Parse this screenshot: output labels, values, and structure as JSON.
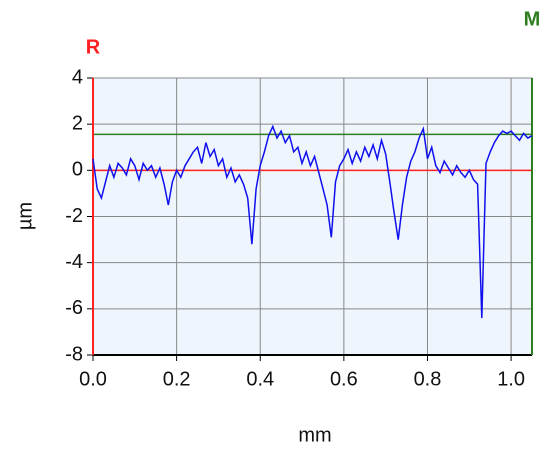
{
  "chart_data": {
    "type": "line",
    "xlabel": "mm",
    "ylabel": "µm",
    "xlim": [
      0,
      1.05
    ],
    "ylim": [
      -8,
      4
    ],
    "xticks": [
      {
        "value": 0,
        "label": "0.0"
      },
      0.2,
      0.4,
      0.6,
      0.8,
      {
        "value": 1,
        "label": "1.0"
      }
    ],
    "yticks": [
      4,
      2,
      0,
      -2,
      -4,
      -6,
      -8
    ],
    "grid": true,
    "reference_lines": [
      {
        "name": "R",
        "value": 0,
        "color": "#ff2020"
      },
      {
        "name": "M",
        "value": 1.56,
        "color": "#2e7d1e"
      }
    ],
    "series": [
      {
        "color": "#1010ee",
        "x": [
          0.0,
          0.01,
          0.02,
          0.03,
          0.04,
          0.05,
          0.06,
          0.07,
          0.08,
          0.09,
          0.1,
          0.11,
          0.12,
          0.13,
          0.14,
          0.15,
          0.16,
          0.17,
          0.18,
          0.19,
          0.2,
          0.21,
          0.22,
          0.23,
          0.24,
          0.25,
          0.26,
          0.27,
          0.28,
          0.29,
          0.3,
          0.31,
          0.32,
          0.33,
          0.34,
          0.35,
          0.36,
          0.37,
          0.38,
          0.39,
          0.4,
          0.41,
          0.42,
          0.43,
          0.44,
          0.45,
          0.46,
          0.47,
          0.48,
          0.49,
          0.5,
          0.51,
          0.52,
          0.53,
          0.54,
          0.55,
          0.56,
          0.57,
          0.58,
          0.59,
          0.6,
          0.61,
          0.62,
          0.63,
          0.64,
          0.65,
          0.66,
          0.67,
          0.68,
          0.69,
          0.7,
          0.71,
          0.72,
          0.73,
          0.74,
          0.75,
          0.76,
          0.77,
          0.78,
          0.79,
          0.8,
          0.81,
          0.82,
          0.83,
          0.84,
          0.85,
          0.86,
          0.87,
          0.88,
          0.89,
          0.9,
          0.91,
          0.92,
          0.93,
          0.94,
          0.95,
          0.96,
          0.97,
          0.98,
          0.99,
          1.0,
          1.01,
          1.02,
          1.03,
          1.04,
          1.05
        ],
        "values": [
          0.5,
          -0.8,
          -1.2,
          -0.5,
          0.2,
          -0.3,
          0.3,
          0.1,
          -0.2,
          0.5,
          0.2,
          -0.4,
          0.3,
          0.0,
          0.2,
          -0.3,
          0.1,
          -0.6,
          -1.5,
          -0.5,
          0.0,
          -0.3,
          0.2,
          0.5,
          0.8,
          1.0,
          0.3,
          1.2,
          0.6,
          0.9,
          0.2,
          0.5,
          -0.3,
          0.1,
          -0.5,
          -0.2,
          -0.6,
          -1.2,
          -3.2,
          -0.8,
          0.2,
          0.8,
          1.5,
          1.9,
          1.4,
          1.7,
          1.2,
          1.5,
          0.8,
          1.0,
          0.3,
          0.8,
          0.2,
          0.6,
          -0.1,
          -0.8,
          -1.5,
          -2.9,
          -0.5,
          0.2,
          0.5,
          0.9,
          0.3,
          0.8,
          0.4,
          1.0,
          0.6,
          1.1,
          0.5,
          1.3,
          0.7,
          -0.5,
          -1.8,
          -3.0,
          -1.5,
          -0.3,
          0.4,
          0.8,
          1.4,
          1.8,
          0.5,
          1.0,
          0.2,
          -0.1,
          0.4,
          0.1,
          -0.2,
          0.2,
          -0.1,
          -0.3,
          0.0,
          -0.4,
          -0.6,
          -6.4,
          0.3,
          0.8,
          1.2,
          1.5,
          1.7,
          1.6,
          1.7,
          1.5,
          1.3,
          1.6,
          1.4,
          1.5
        ]
      }
    ]
  }
}
